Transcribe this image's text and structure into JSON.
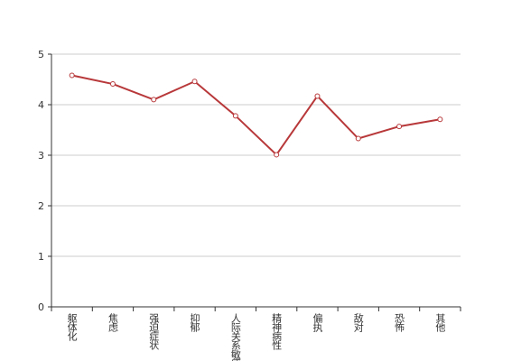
{
  "chart_data": {
    "type": "line",
    "categories": [
      "躯体化",
      "焦虑",
      "强迫症状",
      "抑郁",
      "人际关系敏感",
      "精神病性",
      "偏执",
      "敌对",
      "恐怖",
      "其他"
    ],
    "series": [
      {
        "name": null,
        "color": "#b8383a",
        "values": [
          4.58,
          4.41,
          4.1,
          4.46,
          3.78,
          3.01,
          4.17,
          3.33,
          3.57,
          3.71
        ]
      }
    ],
    "ylim": [
      0,
      5
    ],
    "yticks": [
      0,
      1,
      2,
      3,
      4,
      5
    ],
    "grid": true
  }
}
